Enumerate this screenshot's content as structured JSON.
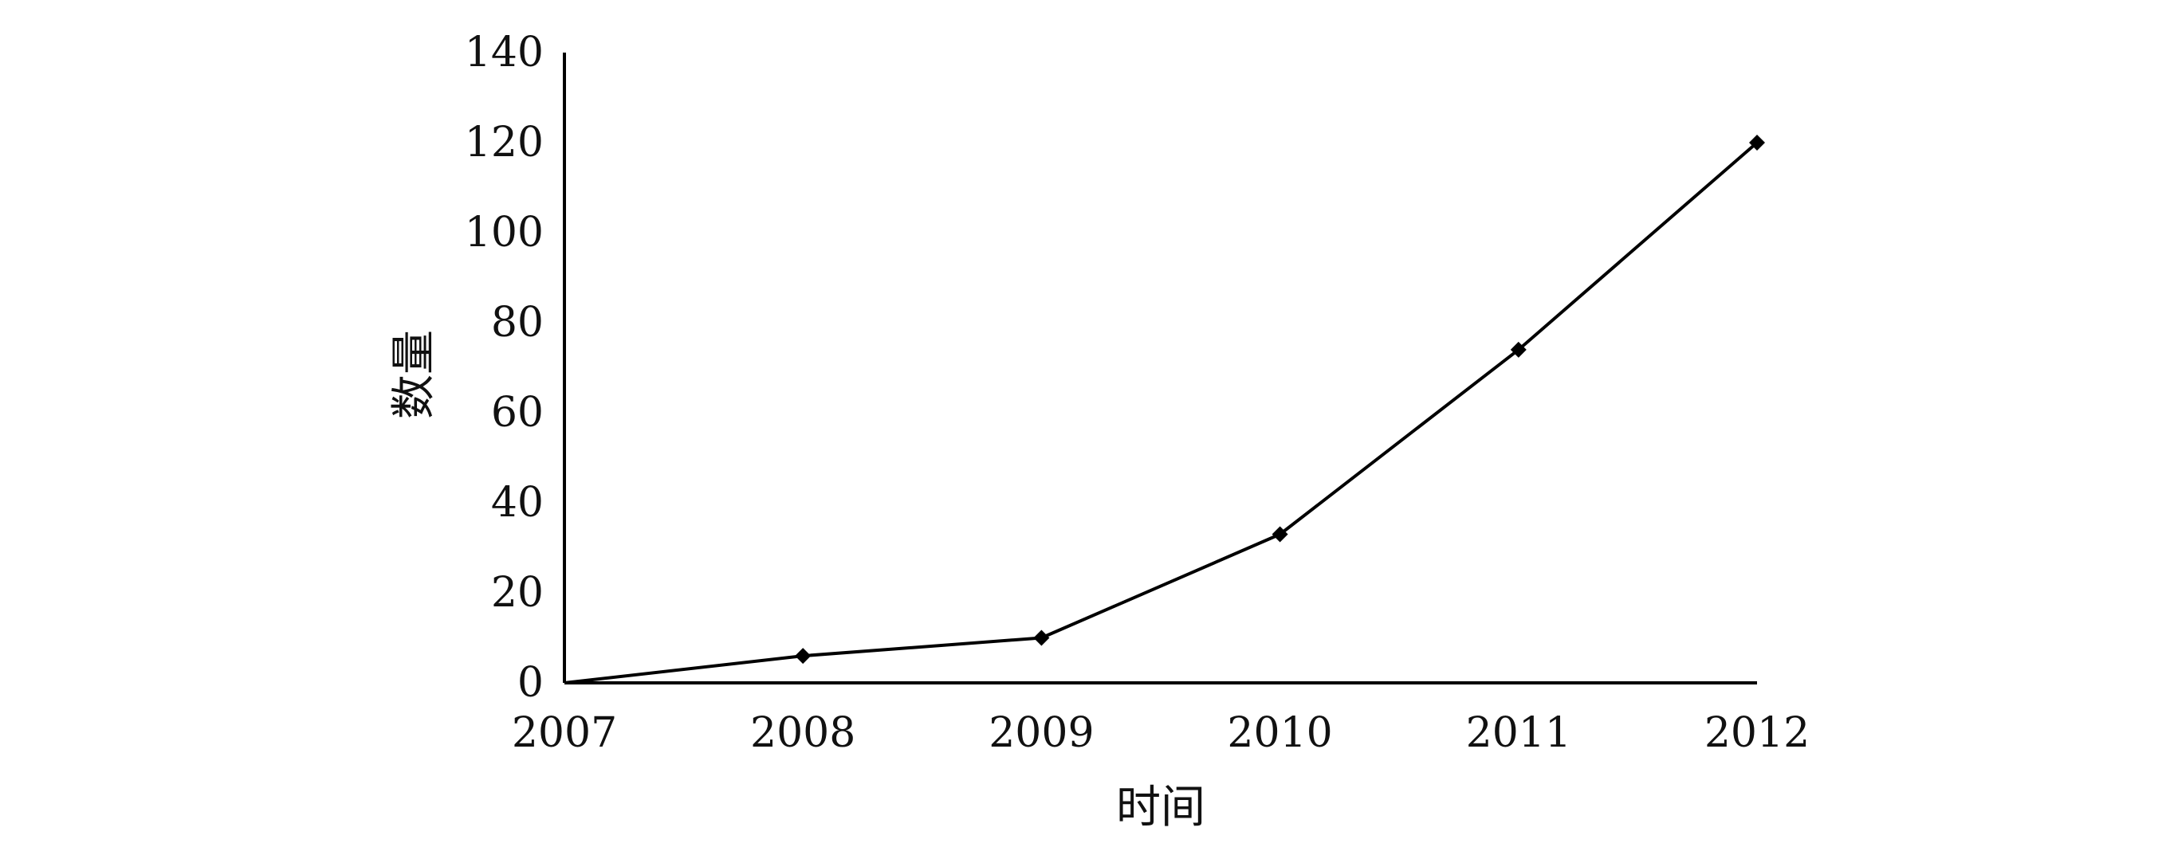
{
  "chart_data": {
    "type": "line",
    "x": [
      2007,
      2008,
      2009,
      2010,
      2011,
      2012
    ],
    "series": [
      {
        "values": [
          0,
          6,
          10,
          33,
          74,
          120
        ]
      }
    ],
    "xlabel": "时间",
    "ylabel": "数量",
    "x_tick_labels": [
      "2007",
      "2008",
      "2009",
      "2010",
      "2011",
      "2012"
    ],
    "y_tick_labels": [
      "0",
      "20",
      "40",
      "60",
      "80",
      "100",
      "120",
      "140"
    ],
    "ylim": [
      0,
      140
    ],
    "xlim": [
      2007,
      2012
    ],
    "grid": false,
    "legend": "none",
    "marker": "diamond",
    "line_color": "#000000"
  }
}
